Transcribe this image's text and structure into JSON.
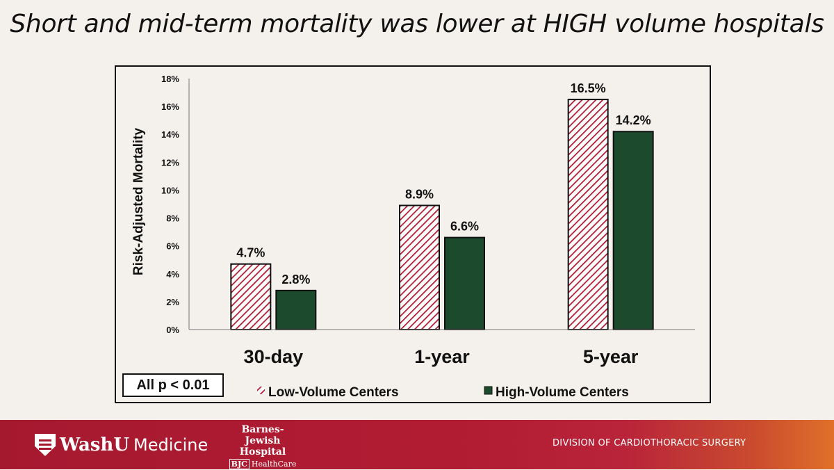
{
  "title": "Short and mid-term mortality was lower at HIGH volume hospitals",
  "p_note": "All p < 0.01",
  "chart_data": {
    "type": "bar",
    "title": "Short and mid-term mortality was lower at HIGH volume hospitals",
    "categories": [
      "30-day",
      "1-year",
      "5-year"
    ],
    "series": [
      {
        "name": "Low-Volume Centers",
        "values": [
          4.7,
          8.9,
          16.5
        ],
        "labels": [
          "4.7%",
          "8.9%",
          "16.5%"
        ],
        "color": "#b0192e",
        "pattern": "diagonal-hatch"
      },
      {
        "name": "High-Volume Centers",
        "values": [
          2.8,
          6.6,
          14.2
        ],
        "labels": [
          "2.8%",
          "6.6%",
          "14.2%"
        ],
        "color": "#1b4a2c",
        "pattern": "solid"
      }
    ],
    "xlabel": "",
    "ylabel": "Risk-Adjusted Mortality",
    "ylim": [
      0,
      18
    ],
    "yticks": [
      "0%",
      "2%",
      "4%",
      "6%",
      "8%",
      "10%",
      "12%",
      "14%",
      "16%",
      "18%"
    ],
    "grid": false,
    "legend": "bottom"
  },
  "footer": {
    "washu_bold": "WashU",
    "washu_light": "Medicine",
    "bjh_line1": "Barnes-Jewish",
    "bjh_line2": "Hospital",
    "bjc_mark": "BJC",
    "bjc_text": "HealthCare",
    "division": "DIVISION OF CARDIOTHORACIC SURGERY",
    "color_start": "#a5192f",
    "color_end": "#e0702a"
  }
}
